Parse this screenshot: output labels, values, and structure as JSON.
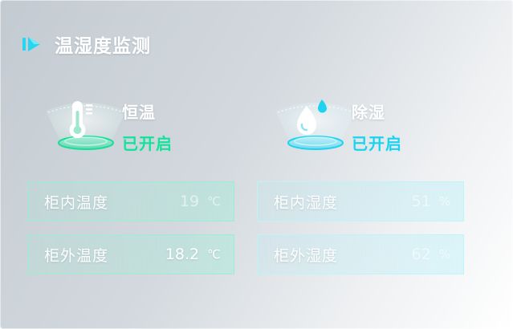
{
  "header": {
    "title": "温湿度监测",
    "icon": "play-chevron-icon"
  },
  "colors": {
    "on_green": "#12e29a",
    "on_cyan": "#19d3f0"
  },
  "devices": {
    "temp": {
      "name": "恒温",
      "status": "已开启",
      "icon": "thermometer-icon"
    },
    "humid": {
      "name": "除湿",
      "status": "已开启",
      "icon": "water-drop-icon"
    }
  },
  "readings": {
    "inner_temp": {
      "label": "柜内温度",
      "value": "19",
      "unit": "℃"
    },
    "outer_temp": {
      "label": "柜外温度",
      "value": "18.2",
      "unit": "℃"
    },
    "inner_humidity": {
      "label": "柜内湿度",
      "value": "51",
      "unit": "%"
    },
    "outer_humidity": {
      "label": "柜外湿度",
      "value": "62",
      "unit": "%"
    }
  }
}
